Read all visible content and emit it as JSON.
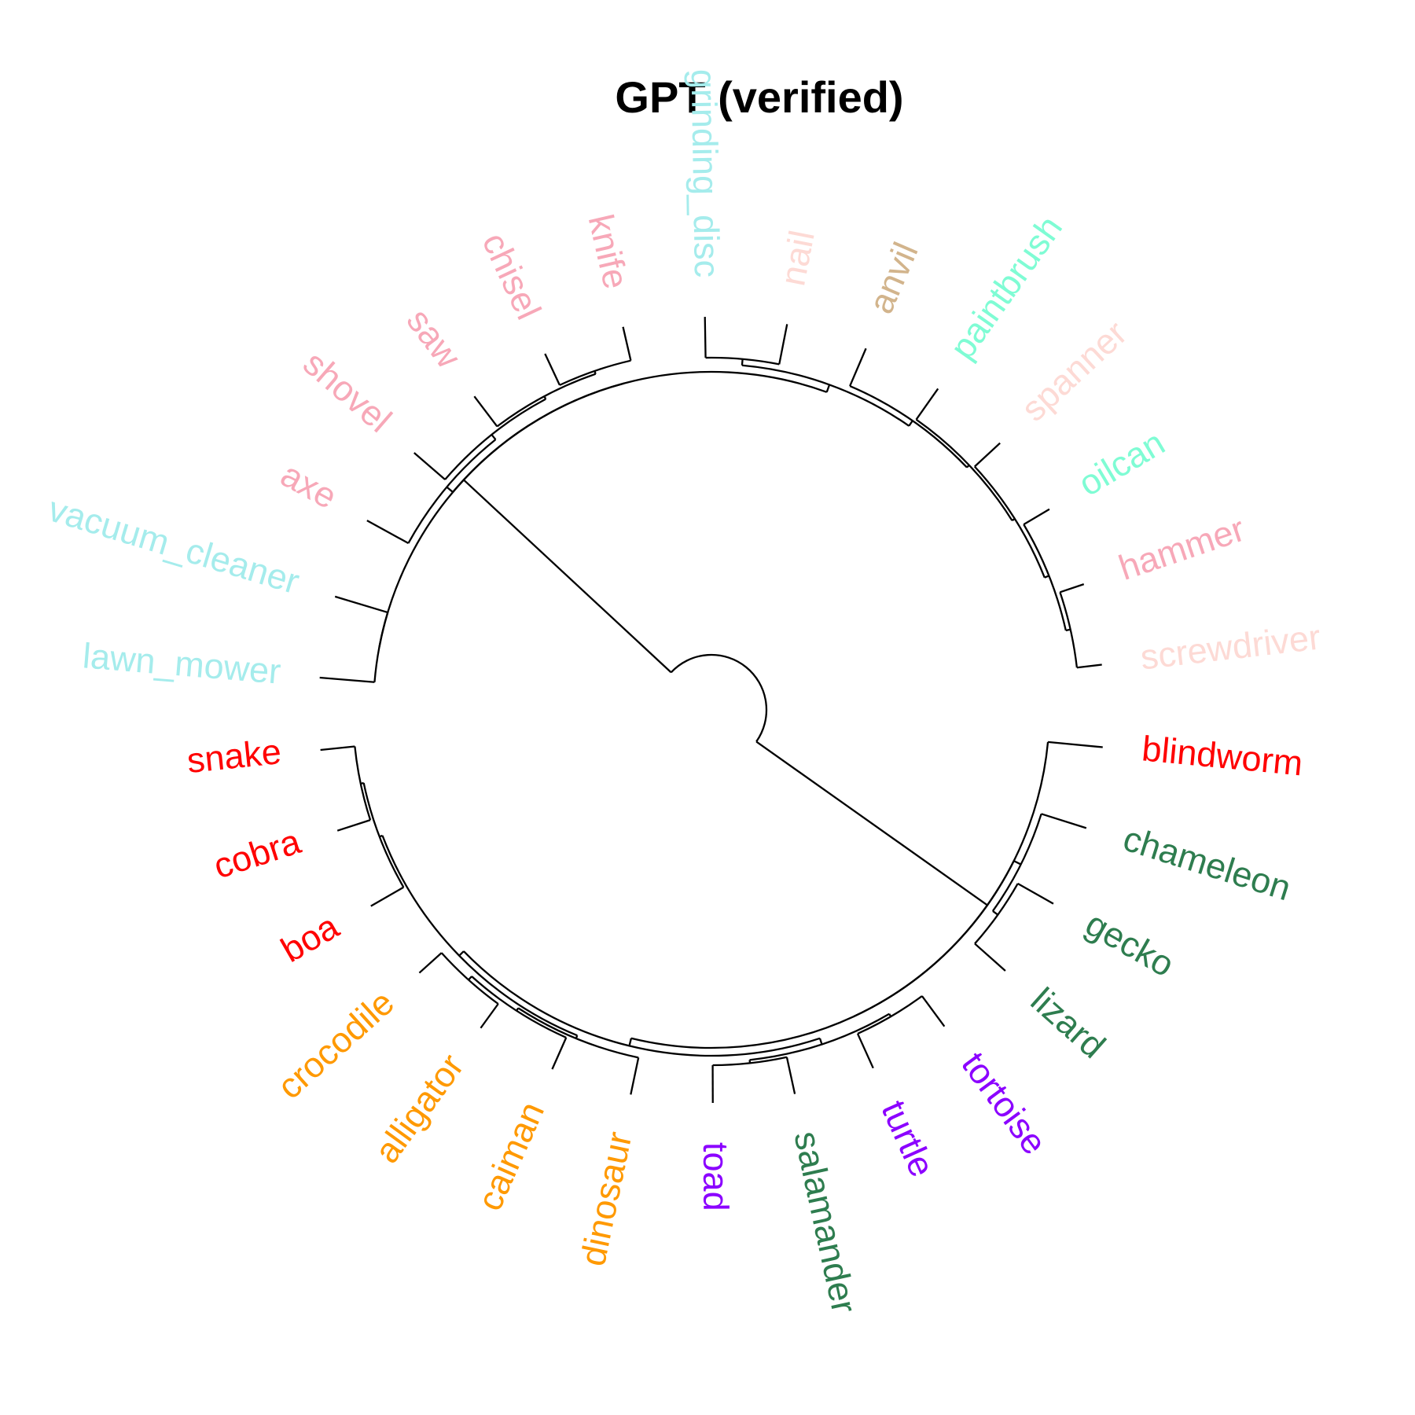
{
  "title": "GPT (verified)",
  "tree": {
    "children": [
      {
        "children": [
          {
            "children": [
              {
                "name": "lawn_mower",
                "color": "#a5ecec"
              },
              {
                "name": "vacuum_cleaner",
                "color": "#a5ecec"
              }
            ]
          },
          {
            "children": [
              {
                "children": [
                  {
                    "name": "axe",
                    "color": "#f7a8b8"
                  },
                  {
                    "children": [
                      {
                        "name": "shovel",
                        "color": "#f7a8b8"
                      },
                      {
                        "children": [
                          {
                            "name": "saw",
                            "color": "#f7a8b8"
                          },
                          {
                            "children": [
                              {
                                "name": "chisel",
                                "color": "#f7a8b8"
                              },
                              {
                                "name": "knife",
                                "color": "#f7a8b8"
                              }
                            ]
                          }
                        ]
                      }
                    ]
                  }
                ]
              },
              {
                "children": [
                  {
                    "children": [
                      {
                        "name": "grinding_disc",
                        "color": "#a5ecec"
                      },
                      {
                        "name": "nail",
                        "color": "#fddad5"
                      }
                    ]
                  },
                  {
                    "children": [
                      {
                        "name": "anvil",
                        "color": "#d2b48c"
                      },
                      {
                        "children": [
                          {
                            "name": "paintbrush",
                            "color": "#7ffcd4"
                          },
                          {
                            "children": [
                              {
                                "name": "spanner",
                                "color": "#fddad5"
                              },
                              {
                                "children": [
                                  {
                                    "name": "oilcan",
                                    "color": "#7ffcd4"
                                  },
                                  {
                                    "children": [
                                      {
                                        "name": "hammer",
                                        "color": "#f7a8b8"
                                      },
                                      {
                                        "name": "screwdriver",
                                        "color": "#fddad5"
                                      }
                                    ]
                                  }
                                ]
                              }
                            ]
                          }
                        ]
                      }
                    ]
                  }
                ]
              }
            ]
          }
        ]
      },
      {
        "children": [
          {
            "name": "blindworm",
            "color": "#ff0000"
          },
          {
            "children": [
              {
                "children": [
                  {
                    "name": "chameleon",
                    "color": "#2e7d4f"
                  },
                  {
                    "children": [
                      {
                        "name": "gecko",
                        "color": "#2e7d4f"
                      },
                      {
                        "name": "lizard",
                        "color": "#2e7d4f"
                      }
                    ]
                  }
                ]
              },
              {
                "children": [
                  {
                    "children": [
                      {
                        "children": [
                          {
                            "name": "tortoise",
                            "color": "#8b00ff"
                          },
                          {
                            "name": "turtle",
                            "color": "#8b00ff"
                          }
                        ]
                      },
                      {
                        "children": [
                          {
                            "name": "salamander",
                            "color": "#2e7d4f"
                          },
                          {
                            "name": "toad",
                            "color": "#8b00ff"
                          }
                        ]
                      }
                    ]
                  },
                  {
                    "children": [
                      {
                        "children": [
                          {
                            "name": "dinosaur",
                            "color": "#ff9900"
                          },
                          {
                            "children": [
                              {
                                "name": "caiman",
                                "color": "#ff9900"
                              },
                              {
                                "children": [
                                  {
                                    "name": "alligator",
                                    "color": "#ff9900"
                                  },
                                  {
                                    "name": "crocodile",
                                    "color": "#ff9900"
                                  }
                                ]
                              }
                            ]
                          }
                        ]
                      },
                      {
                        "children": [
                          {
                            "name": "boa",
                            "color": "#ff0000"
                          },
                          {
                            "children": [
                              {
                                "name": "cobra",
                                "color": "#ff0000"
                              },
                              {
                                "name": "snake",
                                "color": "#ff0000"
                              }
                            ]
                          }
                        ]
                      }
                    ]
                  }
                ]
              }
            ]
          }
        ]
      }
    ]
  }
}
